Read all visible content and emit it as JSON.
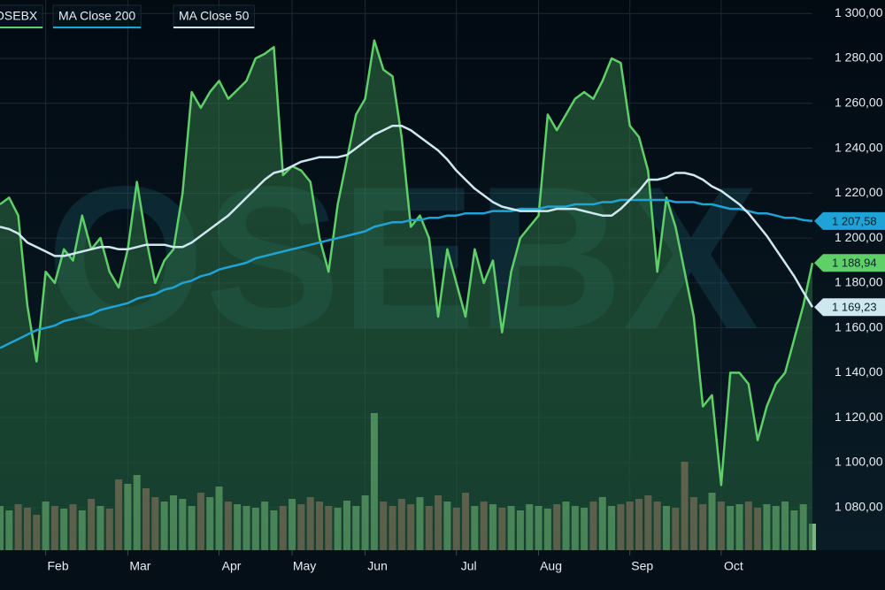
{
  "chart_data": {
    "type": "line",
    "watermark": "OSEBX",
    "categories": [
      null,
      null,
      null,
      null,
      null,
      "Feb",
      null,
      null,
      null,
      null,
      null,
      null,
      null,
      null,
      "Mar",
      null,
      null,
      null,
      null,
      null,
      null,
      null,
      null,
      null,
      "Apr",
      null,
      null,
      null,
      null,
      null,
      null,
      null,
      "May",
      null,
      null,
      null,
      null,
      null,
      null,
      null,
      "Jun",
      null,
      null,
      null,
      null,
      null,
      null,
      null,
      null,
      null,
      "Jul",
      null,
      null,
      null,
      null,
      null,
      null,
      null,
      null,
      "Aug",
      null,
      null,
      null,
      null,
      null,
      null,
      null,
      null,
      null,
      "Sep",
      null,
      null,
      null,
      null,
      null,
      null,
      null,
      null,
      null,
      "Oct",
      null,
      null,
      null,
      null,
      null,
      null,
      null,
      null,
      null,
      null
    ],
    "series": [
      {
        "name": "OSEBX",
        "color": "#5fd068",
        "area": true,
        "last_label": "1 188,94",
        "values": [
          1215,
          1218,
          1210,
          1170,
          1145,
          1185,
          1180,
          1195,
          1190,
          1210,
          1195,
          1200,
          1185,
          1178,
          1195,
          1225,
          1200,
          1180,
          1190,
          1195,
          1220,
          1265,
          1258,
          1265,
          1270,
          1262,
          1266,
          1270,
          1280,
          1282,
          1285,
          1228,
          1232,
          1230,
          1225,
          1200,
          1185,
          1215,
          1235,
          1255,
          1262,
          1288,
          1275,
          1272,
          1245,
          1205,
          1210,
          1200,
          1165,
          1195,
          1180,
          1165,
          1195,
          1180,
          1190,
          1158,
          1185,
          1200,
          1205,
          1210,
          1255,
          1248,
          1255,
          1262,
          1265,
          1262,
          1270,
          1280,
          1278,
          1250,
          1245,
          1230,
          1185,
          1218,
          1205,
          1185,
          1165,
          1125,
          1130,
          1090,
          1140,
          1140,
          1135,
          1110,
          1125,
          1135,
          1140,
          1155,
          1170,
          1188.94
        ]
      },
      {
        "name": "MA Close 200",
        "color": "#1fa3d6",
        "last_label": "1 207,58",
        "values": [
          1151,
          1153,
          1155,
          1157,
          1159,
          1160,
          1161,
          1163,
          1164,
          1165,
          1166,
          1168,
          1169,
          1170,
          1171,
          1173,
          1174,
          1175,
          1177,
          1178,
          1180,
          1181,
          1183,
          1184,
          1186,
          1187,
          1188,
          1189,
          1191,
          1192,
          1193,
          1194,
          1195,
          1196,
          1197,
          1198,
          1199,
          1200,
          1201,
          1202,
          1203,
          1205,
          1206,
          1207,
          1207,
          1208,
          1208,
          1209,
          1209,
          1210,
          1210,
          1211,
          1211,
          1211,
          1212,
          1212,
          1212,
          1213,
          1213,
          1213,
          1214,
          1214,
          1214,
          1215,
          1215,
          1215,
          1216,
          1216,
          1217,
          1217,
          1217,
          1217,
          1217,
          1217,
          1216,
          1216,
          1216,
          1215,
          1215,
          1214,
          1213,
          1213,
          1212,
          1211,
          1211,
          1210,
          1209,
          1209,
          1208,
          1207.58
        ]
      },
      {
        "name": "MA Close 50",
        "color": "#cfe8f0",
        "last_label": "1 169,23",
        "values": [
          1205,
          1204,
          1202,
          1198,
          1196,
          1194,
          1192,
          1192,
          1193,
          1194,
          1195,
          1196,
          1196,
          1195,
          1195,
          1196,
          1197,
          1197,
          1197,
          1196,
          1196,
          1198,
          1201,
          1204,
          1207,
          1210,
          1214,
          1218,
          1222,
          1226,
          1229,
          1230,
          1232,
          1234,
          1235,
          1236,
          1236,
          1236,
          1237,
          1240,
          1243,
          1246,
          1248,
          1250,
          1250,
          1248,
          1245,
          1242,
          1239,
          1235,
          1230,
          1226,
          1222,
          1219,
          1216,
          1214,
          1213,
          1212,
          1212,
          1212,
          1212,
          1213,
          1213,
          1213,
          1212,
          1211,
          1210,
          1210,
          1213,
          1217,
          1221,
          1226,
          1226,
          1227,
          1229,
          1229,
          1228,
          1226,
          1223,
          1221,
          1218,
          1215,
          1211,
          1206,
          1201,
          1195,
          1189,
          1183,
          1176,
          1169.23
        ]
      }
    ],
    "volume": {
      "up_color": "#8fcf8f",
      "down_color": "#c0706e",
      "values": [
        50,
        45,
        52,
        48,
        40,
        55,
        50,
        47,
        52,
        45,
        58,
        50,
        47,
        80,
        75,
        85,
        70,
        60,
        55,
        62,
        58,
        50,
        65,
        60,
        72,
        55,
        52,
        50,
        48,
        55,
        45,
        50,
        58,
        52,
        60,
        55,
        50,
        48,
        56,
        50,
        62,
        155,
        55,
        50,
        58,
        52,
        60,
        50,
        62,
        55,
        48,
        65,
        50,
        55,
        52,
        48,
        50,
        45,
        52,
        50,
        47,
        52,
        55,
        50,
        48,
        55,
        60,
        50,
        52,
        55,
        58,
        62,
        55,
        50,
        48,
        100,
        60,
        52,
        65,
        55,
        50,
        52,
        55,
        48,
        52,
        50,
        55,
        45,
        52,
        30
      ]
    },
    "ylim": [
      1061,
      1306
    ],
    "yticks": [
      {
        "value": 1080,
        "label": "1 080,00"
      },
      {
        "value": 1100,
        "label": "1 100,00"
      },
      {
        "value": 1120,
        "label": "1 120,00"
      },
      {
        "value": 1140,
        "label": "1 140,00"
      },
      {
        "value": 1160,
        "label": "1 160,00"
      },
      {
        "value": 1180,
        "label": "1 180,00"
      },
      {
        "value": 1200,
        "label": "1 200,00"
      },
      {
        "value": 1220,
        "label": "1 220,00"
      },
      {
        "value": 1240,
        "label": "1 240,00"
      },
      {
        "value": 1260,
        "label": "1 260,00"
      },
      {
        "value": 1280,
        "label": "1 280,00"
      },
      {
        "value": 1300,
        "label": "1 300,00"
      }
    ],
    "grid": true
  }
}
